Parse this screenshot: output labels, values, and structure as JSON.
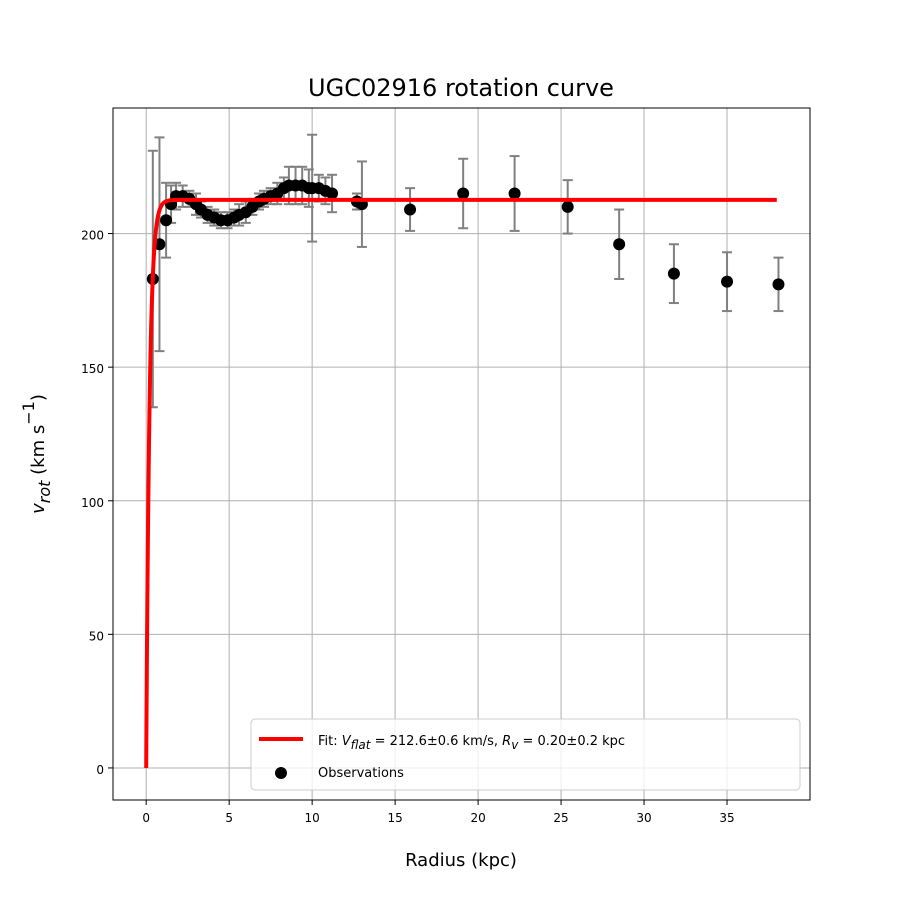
{
  "chart_data": {
    "type": "scatter",
    "title": "UGC02916 rotation curve",
    "xlabel": "Radius (kpc)",
    "ylabel_main": "v",
    "ylabel_sub": "rot",
    "ylabel_unit": "(km s",
    "ylabel_exp": "−1",
    "ylabel_close": ")",
    "xlim": [
      -2,
      40
    ],
    "ylim": [
      -12,
      247
    ],
    "xticks": [
      0,
      5,
      10,
      15,
      20,
      25,
      30,
      35
    ],
    "yticks": [
      0,
      50,
      100,
      150,
      200
    ],
    "grid": true,
    "legend_position": "lower right",
    "colors": {
      "fit": "#ff0000",
      "observations": "#000000",
      "errorbar": "#808080",
      "grid": "#b0b0b0"
    },
    "fit": {
      "legend": {
        "prefix": "Fit: ",
        "v_sym": "V",
        "v_sub": "flat",
        "v_val": " = 212.6±0.6 km/s, ",
        "r_sym": "R",
        "r_sub": "v",
        "r_val": " = 0.20±0.2 kpc"
      },
      "v_flat": 212.6,
      "r_v": 0.2,
      "x_range": [
        0,
        38
      ]
    },
    "observations": {
      "legend": "Observations",
      "points": [
        {
          "x": 0.4,
          "y": 183,
          "err": 48
        },
        {
          "x": 0.8,
          "y": 196,
          "err": 40
        },
        {
          "x": 1.2,
          "y": 205,
          "err": 14
        },
        {
          "x": 1.5,
          "y": 211,
          "err": 7
        },
        {
          "x": 1.8,
          "y": 214,
          "err": 5
        },
        {
          "x": 2.2,
          "y": 214,
          "err": 4
        },
        {
          "x": 2.6,
          "y": 213,
          "err": 3
        },
        {
          "x": 3.0,
          "y": 211,
          "err": 4
        },
        {
          "x": 3.3,
          "y": 209,
          "err": 3
        },
        {
          "x": 3.7,
          "y": 207,
          "err": 3
        },
        {
          "x": 4.1,
          "y": 206,
          "err": 3
        },
        {
          "x": 4.5,
          "y": 205,
          "err": 3
        },
        {
          "x": 4.9,
          "y": 205,
          "err": 3
        },
        {
          "x": 5.3,
          "y": 206,
          "err": 3
        },
        {
          "x": 5.6,
          "y": 207,
          "err": 4
        },
        {
          "x": 6.0,
          "y": 208,
          "err": 4
        },
        {
          "x": 6.4,
          "y": 210,
          "err": 3
        },
        {
          "x": 6.8,
          "y": 212,
          "err": 3
        },
        {
          "x": 7.1,
          "y": 213,
          "err": 3
        },
        {
          "x": 7.5,
          "y": 214,
          "err": 3
        },
        {
          "x": 7.9,
          "y": 215,
          "err": 4
        },
        {
          "x": 8.3,
          "y": 217,
          "err": 4
        },
        {
          "x": 8.6,
          "y": 218,
          "err": 7
        },
        {
          "x": 9.0,
          "y": 218,
          "err": 7
        },
        {
          "x": 9.4,
          "y": 218,
          "err": 7
        },
        {
          "x": 9.8,
          "y": 217,
          "err": 7
        },
        {
          "x": 10.0,
          "y": 217,
          "err": 20
        },
        {
          "x": 10.4,
          "y": 217,
          "err": 5
        },
        {
          "x": 10.8,
          "y": 216,
          "err": 5
        },
        {
          "x": 11.2,
          "y": 215,
          "err": 7
        },
        {
          "x": 12.7,
          "y": 212,
          "err": 3
        },
        {
          "x": 13.0,
          "y": 211,
          "err": 16
        },
        {
          "x": 15.9,
          "y": 209,
          "err": 8
        },
        {
          "x": 19.1,
          "y": 215,
          "err": 13
        },
        {
          "x": 22.2,
          "y": 215,
          "err": 14
        },
        {
          "x": 25.4,
          "y": 210,
          "err": 10
        },
        {
          "x": 28.5,
          "y": 196,
          "err": 13
        },
        {
          "x": 31.8,
          "y": 185,
          "err": 11
        },
        {
          "x": 35.0,
          "y": 182,
          "err": 11
        },
        {
          "x": 38.1,
          "y": 181,
          "err": 10
        }
      ]
    }
  }
}
